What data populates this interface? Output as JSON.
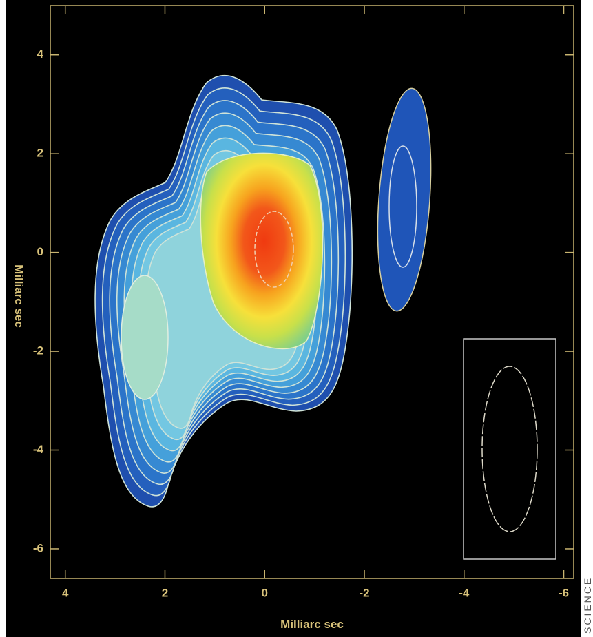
{
  "chart_data": {
    "type": "contour",
    "xlabel": "Milliarc sec",
    "ylabel": "Milliarc sec",
    "xlim": [
      4.3,
      -6.2
    ],
    "ylim": [
      -6.6,
      5.0
    ],
    "xticks": [
      4,
      2,
      0,
      -2,
      -4,
      -6
    ],
    "yticks": [
      4,
      2,
      0,
      -2,
      -4,
      -6
    ],
    "credit": "SCIENCE"
  }
}
